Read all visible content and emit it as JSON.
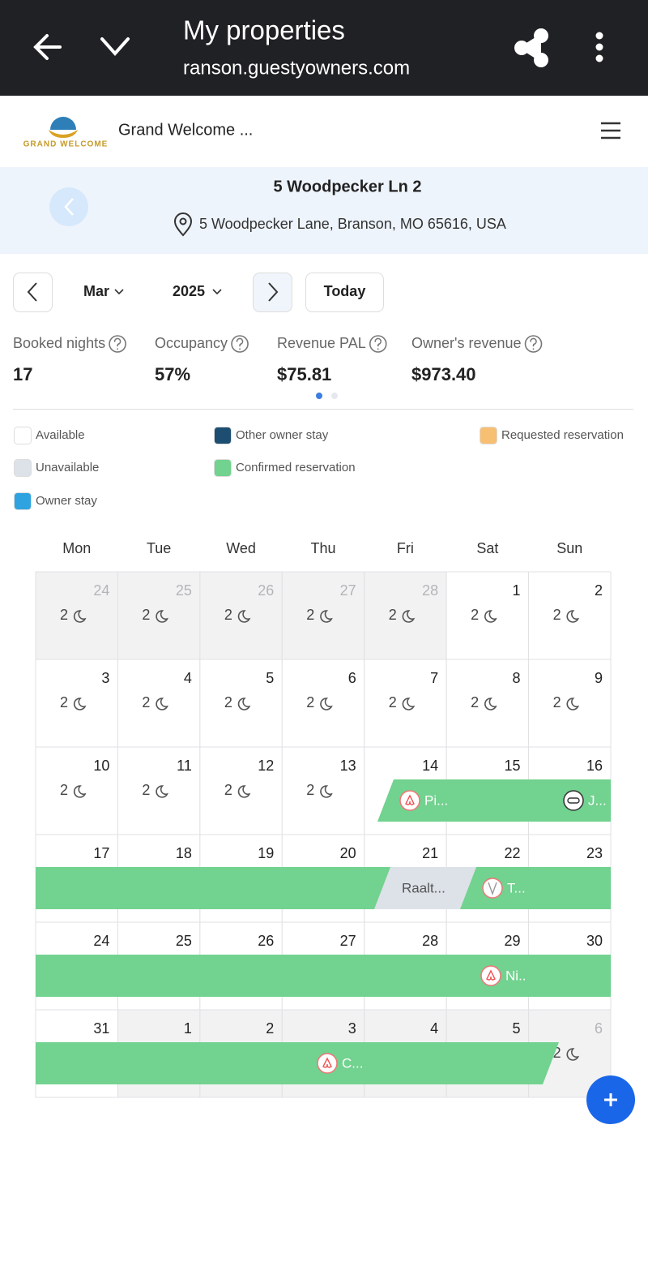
{
  "browser": {
    "title": "My properties",
    "url": "ranson.guestyowners.com"
  },
  "header": {
    "logo_text": "GRAND WELCOME",
    "brand": "Grand Welcome ..."
  },
  "property": {
    "name": "5 Woodpecker Ln 2",
    "address": "5 Woodpecker Lane, Branson, MO 65616, USA"
  },
  "controls": {
    "month": "Mar",
    "year": "2025",
    "today": "Today"
  },
  "stats": [
    {
      "label": "Booked nights",
      "value": "17"
    },
    {
      "label": "Occupancy",
      "value": "57%"
    },
    {
      "label": "Revenue PAL",
      "value": "$75.81"
    },
    {
      "label": "Owner's revenue",
      "value": "$973.40"
    }
  ],
  "legend": [
    {
      "label": "Available",
      "color": "#ffffff"
    },
    {
      "label": "Unavailable",
      "color": "#dde1e8"
    },
    {
      "label": "Owner stay",
      "color": "#2ea3e0"
    },
    {
      "label": "Other owner stay",
      "color": "#1d4e72"
    },
    {
      "label": "Confirmed reservation",
      "color": "#72d28f"
    },
    {
      "label": "Requested reservation",
      "color": "#f7bf72"
    }
  ],
  "calendar": {
    "weekdays": [
      "Mon",
      "Tue",
      "Wed",
      "Thu",
      "Fri",
      "Sat",
      "Sun"
    ],
    "weeks": [
      [
        {
          "day": 24,
          "nights": 2,
          "shade": true,
          "muted": true
        },
        {
          "day": 25,
          "nights": 2,
          "shade": true,
          "muted": true
        },
        {
          "day": 26,
          "nights": 2,
          "shade": true,
          "muted": true
        },
        {
          "day": 27,
          "nights": 2,
          "shade": true,
          "muted": true
        },
        {
          "day": 28,
          "nights": 2,
          "shade": true,
          "muted": true
        },
        {
          "day": 1,
          "nights": 2
        },
        {
          "day": 2,
          "nights": 2
        }
      ],
      [
        {
          "day": 3,
          "nights": 2
        },
        {
          "day": 4,
          "nights": 2
        },
        {
          "day": 5,
          "nights": 2
        },
        {
          "day": 6,
          "nights": 2
        },
        {
          "day": 7,
          "nights": 2
        },
        {
          "day": 8,
          "nights": 2
        },
        {
          "day": 9,
          "nights": 2
        }
      ],
      [
        {
          "day": 10,
          "nights": 2
        },
        {
          "day": 11,
          "nights": 2
        },
        {
          "day": 12,
          "nights": 2
        },
        {
          "day": 13,
          "nights": 2
        },
        {
          "day": 14
        },
        {
          "day": 15
        },
        {
          "day": 16
        }
      ],
      [
        {
          "day": 17
        },
        {
          "day": 18
        },
        {
          "day": 19
        },
        {
          "day": 20
        },
        {
          "day": 21
        },
        {
          "day": 22
        },
        {
          "day": 23
        }
      ],
      [
        {
          "day": 24
        },
        {
          "day": 25
        },
        {
          "day": 26
        },
        {
          "day": 27
        },
        {
          "day": 28
        },
        {
          "day": 29
        },
        {
          "day": 30
        }
      ],
      [
        {
          "day": 31
        },
        {
          "day": 1,
          "shade": true
        },
        {
          "day": 2,
          "shade": true
        },
        {
          "day": 3,
          "shade": true
        },
        {
          "day": 4,
          "shade": true
        },
        {
          "day": 5,
          "shade": true
        },
        {
          "day": 6,
          "nights": 2,
          "shade": true,
          "muted": true
        }
      ]
    ],
    "reservations": [
      {
        "label": "Pi..."
      },
      {
        "label": "J..."
      },
      {
        "label": "Raalt..."
      },
      {
        "label": "T..."
      },
      {
        "label": "Ni.."
      },
      {
        "label": "C..."
      }
    ]
  }
}
